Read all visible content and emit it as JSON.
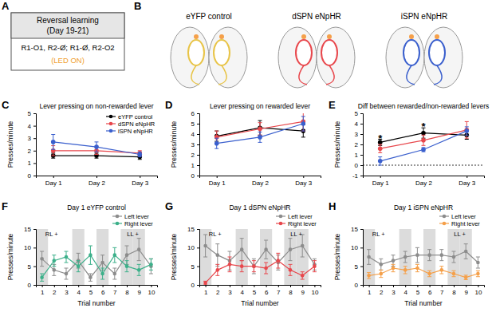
{
  "panel_a": {
    "label": "A",
    "header": [
      "Reversal learning",
      "(Day 19-21)"
    ],
    "body": "R1-O1, R2-Ø; R1-Ø, R2-O2",
    "note": "(LED ON)"
  },
  "panel_b": {
    "label": "B",
    "groups": [
      "eYFP control",
      "dSPN eNpHR",
      "iSPN eNpHR"
    ]
  },
  "chart_data": [
    {
      "type": "line",
      "label": "C",
      "title": "Lever pressing on non-rewarded lever",
      "y_label": "Presses/minute",
      "categories": [
        "Day 1",
        "Day 2",
        "Day 3"
      ],
      "ylim": [
        0,
        5
      ],
      "yticks": [
        0,
        1,
        2,
        3,
        4,
        5
      ],
      "legend": "top-right",
      "marker": "circle",
      "line_style": "solid",
      "series": [
        {
          "name": "eYFP control",
          "color": "#000000",
          "values": [
            1.6,
            1.6,
            1.5
          ],
          "errors": [
            0.2,
            0.2,
            0.2
          ]
        },
        {
          "name": "dSPN eNpHR",
          "color": "#e8474c",
          "values": [
            2.0,
            2.0,
            1.8
          ],
          "errors": [
            0.4,
            0.3,
            0.2
          ]
        },
        {
          "name": "iSPN eNpHR",
          "color": "#3a5fcd",
          "values": [
            2.7,
            2.3,
            1.7
          ],
          "errors": [
            0.6,
            0.4,
            0.2
          ]
        }
      ]
    },
    {
      "type": "line",
      "label": "D",
      "title": "Lever pressing on rewarded lever",
      "y_label": "Presses/minute",
      "categories": [
        "Day 1",
        "Day 2",
        "Day 3"
      ],
      "ylim": [
        0,
        6
      ],
      "yticks": [
        0,
        1,
        2,
        3,
        4,
        5,
        6
      ],
      "marker": "circle",
      "line_style": "solid",
      "series": [
        {
          "name": "eYFP control",
          "color": "#000000",
          "values": [
            3.8,
            4.6,
            4.3
          ],
          "errors": [
            0.5,
            0.7,
            0.6
          ]
        },
        {
          "name": "dSPN eNpHR",
          "color": "#e8474c",
          "values": [
            3.7,
            4.5,
            5.2
          ],
          "errors": [
            0.6,
            0.6,
            0.9
          ]
        },
        {
          "name": "iSPN eNpHR",
          "color": "#3a5fcd",
          "values": [
            3.1,
            3.7,
            5.0
          ],
          "errors": [
            0.5,
            0.5,
            0.7
          ]
        }
      ]
    },
    {
      "type": "line",
      "label": "E",
      "title": "Diff between rewarded/non-rewarded levers",
      "y_label": "Presses/minute",
      "categories": [
        "Day 1",
        "Day 2",
        "Day 3"
      ],
      "ylim": [
        -1,
        5
      ],
      "yticks": [
        -1,
        0,
        1,
        2,
        3,
        4,
        5
      ],
      "reference_y": 0,
      "marker": "circle",
      "line_style": "solid",
      "annotations": [
        {
          "text": "*",
          "x": "Day 1"
        },
        {
          "text": "*",
          "x": "Day 2"
        }
      ],
      "series": [
        {
          "name": "eYFP control",
          "color": "#000000",
          "values": [
            2.2,
            3.1,
            2.9
          ],
          "errors": [
            0.3,
            0.5,
            0.4
          ]
        },
        {
          "name": "dSPN eNpHR",
          "color": "#e8474c",
          "values": [
            1.6,
            2.4,
            3.4
          ],
          "errors": [
            0.4,
            0.5,
            0.8
          ]
        },
        {
          "name": "iSPN eNpHR",
          "color": "#3a5fcd",
          "values": [
            0.4,
            1.5,
            3.3
          ],
          "errors": [
            0.4,
            0.2,
            0.4
          ]
        }
      ]
    },
    {
      "type": "line",
      "label": "F",
      "title": "Day 1 eYFP control",
      "x_label": "Trial number",
      "y_label": "Presses/minute",
      "x": [
        1,
        2,
        3,
        4,
        5,
        6,
        7,
        8,
        9,
        10
      ],
      "xlim": [
        0.5,
        10.5
      ],
      "xticks": [
        1,
        2,
        3,
        4,
        5,
        6,
        7,
        8,
        9,
        10
      ],
      "ylim": [
        0,
        15
      ],
      "yticks": [
        0,
        5,
        10,
        15
      ],
      "shaded_trials": [
        1,
        4,
        6,
        8,
        9
      ],
      "annotations": [
        {
          "text": "RL +",
          "x": 1.8
        },
        {
          "text": "LL +",
          "x": 8.5
        }
      ],
      "legend": "top-right",
      "marker": "circle",
      "line_style": "solid",
      "series": [
        {
          "name": "Left lever",
          "color": "#8c8c8c",
          "values": [
            7,
            4,
            3,
            6.5,
            2,
            6,
            3,
            8,
            9.5,
            5
          ],
          "errors": [
            2,
            1.5,
            1.5,
            2,
            1,
            2,
            1.5,
            2.5,
            3,
            2
          ]
        },
        {
          "name": "Right lever",
          "color": "#3cb08a",
          "values": [
            2,
            6.5,
            7.5,
            5,
            8,
            3,
            8,
            5,
            4,
            5.5
          ],
          "errors": [
            1,
            1.5,
            1.5,
            1.5,
            2.5,
            1.5,
            2,
            1.5,
            1.5,
            1.5
          ]
        }
      ]
    },
    {
      "type": "line",
      "label": "G",
      "title": "Day 1 dSPN eNpHR",
      "x_label": "Trial number",
      "y_label": "Presses/minute",
      "x": [
        1,
        2,
        3,
        4,
        5,
        6,
        7,
        8,
        9,
        10
      ],
      "xlim": [
        0.5,
        10.5
      ],
      "xticks": [
        1,
        2,
        3,
        4,
        5,
        6,
        7,
        8,
        9,
        10
      ],
      "ylim": [
        0,
        15
      ],
      "yticks": [
        0,
        5,
        10,
        15
      ],
      "shaded_trials": [
        1,
        4,
        6,
        8,
        9
      ],
      "annotations": [
        {
          "text": "RL +",
          "x": 1.8
        },
        {
          "text": "LL +",
          "x": 8.5
        }
      ],
      "legend": "top-right",
      "marker": "circle",
      "line_style": "solid",
      "series": [
        {
          "name": "Left lever",
          "color": "#8c8c8c",
          "values": [
            10.5,
            8,
            6.5,
            9.5,
            5,
            9.5,
            6,
            9.5,
            10.5,
            5.5
          ],
          "errors": [
            3,
            3,
            2.5,
            3,
            2,
            2.5,
            2,
            3,
            3,
            1.5
          ]
        },
        {
          "name": "Right lever",
          "color": "#e8474c",
          "values": [
            0.5,
            4,
            5.5,
            5,
            5,
            4.5,
            6.5,
            4,
            2.5,
            5
          ],
          "errors": [
            0.5,
            1.5,
            2,
            1.5,
            1.5,
            1.5,
            2,
            1.5,
            1,
            1.5
          ]
        }
      ]
    },
    {
      "type": "line",
      "label": "H",
      "title": "Day 1 iSPN eNpHR",
      "x_label": "Trial number",
      "y_label": "Presses/minute",
      "x": [
        1,
        2,
        3,
        4,
        5,
        6,
        7,
        8,
        9,
        10
      ],
      "xlim": [
        0.5,
        10.5
      ],
      "xticks": [
        1,
        2,
        3,
        4,
        5,
        6,
        7,
        8,
        9,
        10
      ],
      "ylim": [
        0,
        15
      ],
      "yticks": [
        0,
        5,
        10,
        15
      ],
      "shaded_trials": [
        1,
        4,
        6,
        8,
        9
      ],
      "annotations": [
        {
          "text": "RL +",
          "x": 1.8
        },
        {
          "text": "LL +",
          "x": 8.5
        }
      ],
      "legend": "top-right",
      "marker": "circle",
      "line_style": "solid",
      "series": [
        {
          "name": "Left lever",
          "color": "#8c8c8c",
          "values": [
            7.5,
            5.5,
            6.5,
            7.5,
            8,
            8,
            8,
            7.5,
            9,
            6
          ],
          "errors": [
            2,
            1.5,
            1.5,
            1.5,
            2,
            1.5,
            1.5,
            1.5,
            2,
            1.5
          ]
        },
        {
          "name": "Right lever",
          "color": "#f5a04a",
          "values": [
            2.5,
            3,
            4.5,
            4,
            4.5,
            3,
            4,
            3,
            2,
            3
          ],
          "errors": [
            0.8,
            1,
            1,
            1,
            1,
            0.8,
            1,
            0.8,
            0.6,
            0.8
          ]
        }
      ]
    }
  ]
}
